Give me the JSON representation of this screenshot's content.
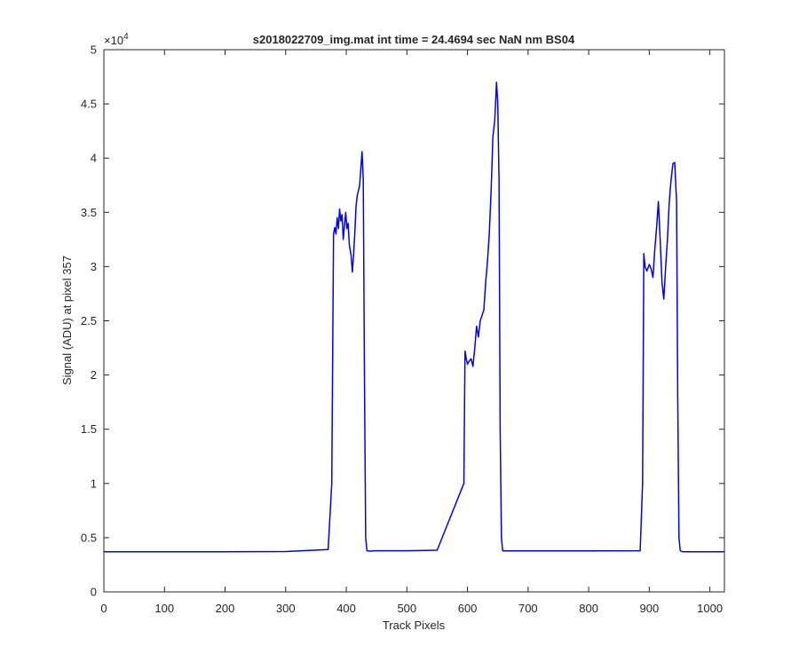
{
  "chart_data": {
    "type": "line",
    "title": "s2018022709_img.mat int time = 24.4694 sec  NaN nm BS04",
    "xlabel": "Track Pixels",
    "ylabel": "Signal (ADU) at pixel 357",
    "xlim": [
      0,
      1024
    ],
    "ylim": [
      0,
      50000
    ],
    "y_exponent_label": "×10",
    "y_exponent_power": "4",
    "x_ticks": [
      0,
      100,
      200,
      300,
      400,
      500,
      600,
      700,
      800,
      900,
      1000
    ],
    "x_tick_labels": [
      "0",
      "100",
      "200",
      "300",
      "400",
      "500",
      "600",
      "700",
      "800",
      "900",
      "1000"
    ],
    "y_ticks": [
      0,
      5000,
      10000,
      15000,
      20000,
      25000,
      30000,
      35000,
      40000,
      45000,
      50000
    ],
    "y_tick_labels": [
      "0",
      "0.5",
      "1",
      "1.5",
      "2",
      "2.5",
      "3",
      "3.5",
      "4",
      "4.5",
      "5"
    ],
    "grid": false,
    "line_color": "#0000ff",
    "series": [
      {
        "x": [
          0,
          100,
          200,
          300,
          370,
          376,
          379,
          381,
          383,
          385,
          387,
          389,
          391,
          393,
          395,
          397,
          399,
          401,
          403,
          405,
          408,
          410,
          412,
          414,
          416,
          418,
          420,
          422,
          424,
          426,
          428,
          430,
          432,
          434,
          436,
          438,
          440,
          445,
          500,
          550,
          594,
          596,
          598,
          600,
          603,
          606,
          609,
          612,
          615,
          618,
          621,
          624,
          627,
          630,
          633,
          636,
          639,
          642,
          645,
          648,
          650,
          652,
          654,
          656,
          658,
          662,
          700,
          800,
          885,
          889,
          891,
          893,
          896,
          900,
          903,
          906,
          909,
          912,
          915,
          918,
          921,
          924,
          927,
          930,
          933,
          936,
          939,
          942,
          945,
          947,
          949,
          951,
          953,
          956,
          1000,
          1024
        ],
        "y": [
          3700,
          3700,
          3700,
          3720,
          3900,
          10000,
          33000,
          33600,
          33000,
          34500,
          33500,
          35300,
          34200,
          34800,
          32500,
          33800,
          35000,
          33500,
          34000,
          32000,
          31000,
          29500,
          31000,
          33000,
          35500,
          36500,
          37000,
          37500,
          39000,
          40600,
          38000,
          20000,
          5000,
          3800,
          3780,
          3770,
          3760,
          3800,
          3800,
          3850,
          10000,
          22200,
          21500,
          21000,
          21300,
          21500,
          20800,
          22500,
          24500,
          23500,
          25000,
          25500,
          26000,
          28500,
          30500,
          33000,
          37000,
          42000,
          43500,
          47000,
          45000,
          38000,
          15000,
          5000,
          3800,
          3780,
          3780,
          3780,
          3800,
          10000,
          31200,
          30000,
          29600,
          30200,
          29800,
          29000,
          31500,
          33500,
          36000,
          32500,
          28500,
          27000,
          30000,
          32500,
          36000,
          38000,
          39500,
          39600,
          36000,
          18000,
          5000,
          3800,
          3750,
          3700,
          3700,
          3700
        ]
      }
    ]
  }
}
